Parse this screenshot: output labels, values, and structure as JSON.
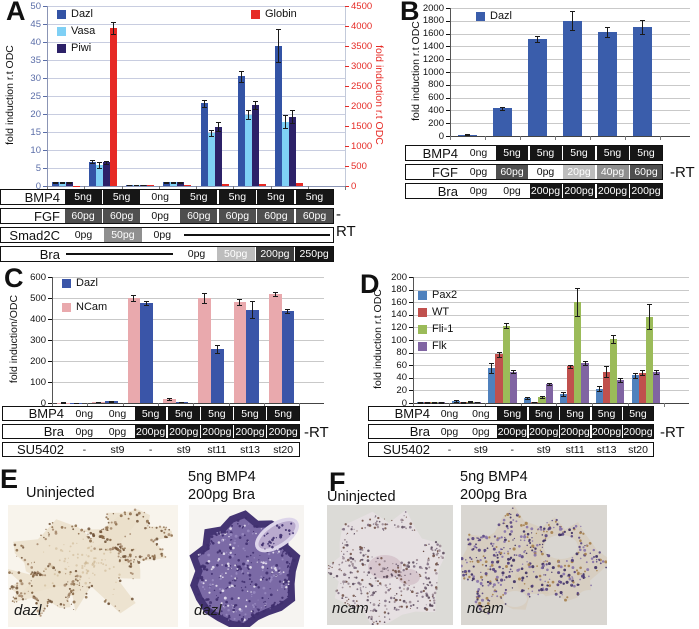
{
  "chart_data": [
    {
      "panel": "A",
      "type": "bar",
      "ylabel_left": "fold induction r.t ODC",
      "ylabel_right": "fold induction r.t ODC",
      "y_left": {
        "min": 0,
        "max": 50,
        "step": 5,
        "tick_color": "#5a6da8"
      },
      "y_right": {
        "min": 0,
        "max": 4500,
        "step": 500,
        "tick_color": "#e62a25"
      },
      "legend": [
        {
          "label": "Dazl",
          "color": "#3353a5"
        },
        {
          "label": "Vasa",
          "color": "#7fd0f5"
        },
        {
          "label": "Piwi",
          "color": "#2c2168"
        }
      ],
      "legend_right": [
        {
          "label": "Globin",
          "color": "#e62a25"
        }
      ],
      "series": [
        {
          "name": "Dazl",
          "color": "#3353a5",
          "axis": "left",
          "values": [
            1,
            6.8,
            0.3,
            1,
            23,
            30.5,
            39
          ],
          "errors": [
            0.15,
            0.5,
            0.05,
            0.12,
            1,
            1.5,
            4.5
          ]
        },
        {
          "name": "Vasa",
          "color": "#7fd0f5",
          "axis": "left",
          "values": [
            1,
            5.8,
            0.2,
            1,
            14.8,
            19.8,
            17.8
          ],
          "errors": [
            0.15,
            0.8,
            0.05,
            0.12,
            0.8,
            1.2,
            1.8
          ]
        },
        {
          "name": "Piwi",
          "color": "#2c2168",
          "axis": "left",
          "values": [
            1,
            6.6,
            0.3,
            1,
            16.5,
            22.5,
            19.3
          ],
          "errors": [
            0.15,
            0.4,
            0.05,
            0.12,
            1.3,
            1.2,
            1.7
          ]
        },
        {
          "name": "Globin",
          "color": "#e62a25",
          "axis": "right",
          "values": [
            5,
            3950,
            25,
            15,
            40,
            60,
            80
          ],
          "errors": [
            0,
            150,
            0,
            0,
            0,
            0,
            0
          ]
        }
      ],
      "table": {
        "rt": "-RT",
        "rows": [
          {
            "label": "BMP4",
            "cells": [
              {
                "t": "5ng",
                "s": "black"
              },
              {
                "t": "5ng",
                "s": "black"
              },
              {
                "t": "0ng",
                "s": "white"
              },
              {
                "t": "5ng",
                "s": "black"
              },
              {
                "t": "5ng",
                "s": "black"
              },
              {
                "t": "5ng",
                "s": "black"
              },
              {
                "t": "5ng",
                "s": "black"
              }
            ]
          },
          {
            "label": "FGF",
            "cells": [
              {
                "t": "60pg",
                "s": "dark"
              },
              {
                "t": "60pg",
                "s": "dark"
              },
              {
                "t": "0pg",
                "s": "white"
              },
              {
                "t": "60pg",
                "s": "dark"
              },
              {
                "t": "60pg",
                "s": "dark"
              },
              {
                "t": "60pg",
                "s": "dark"
              },
              {
                "t": "60pg",
                "s": "dark"
              }
            ]
          },
          {
            "label": "Smad2C",
            "cells": [
              {
                "t": "0pg",
                "s": "white"
              },
              {
                "t": "50pg",
                "s": "medium"
              },
              {
                "t": "0pg",
                "s": "white"
              },
              {
                "line": 4
              }
            ]
          },
          {
            "label": "Bra",
            "cells": [
              {
                "line": 3
              },
              {
                "t": "0pg",
                "s": "white"
              },
              {
                "t": "50pg",
                "s": "light"
              },
              {
                "t": "200pg",
                "s": "middark"
              },
              {
                "t": "250pg",
                "s": "black"
              }
            ]
          }
        ]
      }
    },
    {
      "panel": "B",
      "type": "bar",
      "ylabel_left": "fold induction r.t ODC",
      "y_left": {
        "min": 0,
        "max": 2000,
        "step": 200,
        "tick_color": "#111111"
      },
      "legend": [
        {
          "label": "Dazl",
          "color": "#3a5dab"
        }
      ],
      "series": [
        {
          "name": "Dazl",
          "color": "#3a5dab",
          "axis": "left",
          "values": [
            20,
            430,
            1520,
            1800,
            1620,
            1700
          ],
          "errors": [
            8,
            25,
            45,
            150,
            80,
            110
          ]
        }
      ],
      "table": {
        "rt": "-RT",
        "rows": [
          {
            "label": "BMP4",
            "cells": [
              {
                "t": "0ng",
                "s": "white"
              },
              {
                "t": "5ng",
                "s": "black"
              },
              {
                "t": "5ng",
                "s": "black"
              },
              {
                "t": "5ng",
                "s": "black"
              },
              {
                "t": "5ng",
                "s": "black"
              },
              {
                "t": "5ng",
                "s": "black"
              }
            ]
          },
          {
            "label": "FGF",
            "cells": [
              {
                "t": "0pg",
                "s": "white"
              },
              {
                "t": "60pg",
                "s": "dark"
              },
              {
                "t": "0pg",
                "s": "white"
              },
              {
                "t": "20pg",
                "s": "light"
              },
              {
                "t": "40pg",
                "s": "medium"
              },
              {
                "t": "60pg",
                "s": "dark"
              }
            ]
          },
          {
            "label": "Bra",
            "cells": [
              {
                "t": "0pg",
                "s": "white"
              },
              {
                "t": "0pg",
                "s": "white"
              },
              {
                "t": "200pg",
                "s": "black"
              },
              {
                "t": "200pg",
                "s": "black"
              },
              {
                "t": "200pg",
                "s": "black"
              },
              {
                "t": "200pg",
                "s": "black"
              }
            ]
          }
        ]
      }
    },
    {
      "panel": "C",
      "type": "bar",
      "ylabel_left": "fold induction/ODC",
      "y_left": {
        "min": 0,
        "max": 600,
        "step": 100,
        "tick_color": "#111111"
      },
      "legend": [
        {
          "label": "Dazl",
          "color": "#3a55a8"
        },
        {
          "label": "NCam",
          "color": "#e9a9ad"
        }
      ],
      "series": [
        {
          "name": "NCam",
          "color": "#e9a9ad",
          "axis": "left",
          "values": [
            2,
            5,
            500,
            20,
            500,
            480,
            520
          ],
          "errors": [
            1,
            2,
            15,
            5,
            25,
            15,
            10
          ]
        },
        {
          "name": "Dazl",
          "color": "#3a55a8",
          "axis": "left",
          "values": [
            1,
            8,
            475,
            5,
            258,
            445,
            438
          ],
          "errors": [
            1,
            3,
            10,
            2,
            18,
            40,
            10
          ]
        }
      ],
      "table": {
        "rt": "-RT",
        "rows": [
          {
            "label": "BMP4",
            "cells": [
              {
                "t": "0ng",
                "s": "white"
              },
              {
                "t": "0ng",
                "s": "white"
              },
              {
                "t": "5ng",
                "s": "black"
              },
              {
                "t": "5ng",
                "s": "black"
              },
              {
                "t": "5ng",
                "s": "black"
              },
              {
                "t": "5ng",
                "s": "black"
              },
              {
                "t": "5ng",
                "s": "black"
              }
            ]
          },
          {
            "label": "Bra",
            "cells": [
              {
                "t": "0pg",
                "s": "white"
              },
              {
                "t": "0pg",
                "s": "white"
              },
              {
                "t": "200pg",
                "s": "black"
              },
              {
                "t": "200pg",
                "s": "black"
              },
              {
                "t": "200pg",
                "s": "black"
              },
              {
                "t": "200pg",
                "s": "black"
              },
              {
                "t": "200pg",
                "s": "black"
              }
            ]
          },
          {
            "label": "SU5402",
            "cells": [
              {
                "t": "-",
                "s": "white"
              },
              {
                "t": "st9",
                "s": "white"
              },
              {
                "t": "-",
                "s": "white"
              },
              {
                "t": "st9",
                "s": "white"
              },
              {
                "t": "st11",
                "s": "white"
              },
              {
                "t": "st13",
                "s": "white"
              },
              {
                "t": "st20",
                "s": "white"
              }
            ]
          }
        ]
      }
    },
    {
      "panel": "D",
      "type": "bar",
      "ylabel_left": "fold induction r.t ODC",
      "y_left": {
        "min": 0,
        "max": 200,
        "step": 20,
        "tick_color": "#111111"
      },
      "legend": [
        {
          "label": "Pax2",
          "color": "#4f81bd"
        },
        {
          "label": "WT",
          "color": "#c0504d"
        },
        {
          "label": "Fli-1",
          "color": "#9bbb59"
        },
        {
          "label": "Flk",
          "color": "#8064a2"
        }
      ],
      "series": [
        {
          "name": "Pax2",
          "color": "#4f81bd",
          "axis": "left",
          "values": [
            1,
            3,
            56,
            8,
            14,
            23,
            44
          ],
          "errors": [
            0.5,
            1,
            8,
            1.5,
            3,
            4,
            4
          ]
        },
        {
          "name": "WT",
          "color": "#c0504d",
          "axis": "left",
          "values": [
            1,
            1,
            77,
            1.5,
            58,
            50,
            48
          ],
          "errors": [
            0.5,
            0.5,
            4,
            0.5,
            2,
            8,
            4
          ]
        },
        {
          "name": "Fli-1",
          "color": "#9bbb59",
          "axis": "left",
          "values": [
            1,
            2,
            123,
            9,
            160,
            102,
            137
          ],
          "errors": [
            0.5,
            0.5,
            4,
            1.5,
            22,
            6,
            20
          ]
        },
        {
          "name": "Flk",
          "color": "#8064a2",
          "axis": "left",
          "values": [
            1,
            1.5,
            50,
            30,
            64,
            37,
            49
          ],
          "errors": [
            0.5,
            0.5,
            2,
            2,
            3,
            3,
            3
          ]
        }
      ],
      "table": {
        "rt": "-RT",
        "rows": [
          {
            "label": "BMP4",
            "cells": [
              {
                "t": "0ng",
                "s": "white"
              },
              {
                "t": "0ng",
                "s": "white"
              },
              {
                "t": "5ng",
                "s": "black"
              },
              {
                "t": "5ng",
                "s": "black"
              },
              {
                "t": "5ng",
                "s": "black"
              },
              {
                "t": "5ng",
                "s": "black"
              },
              {
                "t": "5ng",
                "s": "black"
              }
            ]
          },
          {
            "label": "Bra",
            "cells": [
              {
                "t": "0pg",
                "s": "white"
              },
              {
                "t": "0pg",
                "s": "white"
              },
              {
                "t": "200pg",
                "s": "black"
              },
              {
                "t": "200pg",
                "s": "black"
              },
              {
                "t": "200pg",
                "s": "black"
              },
              {
                "t": "200pg",
                "s": "black"
              },
              {
                "t": "200pg",
                "s": "black"
              }
            ]
          },
          {
            "label": "SU5402",
            "cells": [
              {
                "t": "-",
                "s": "white"
              },
              {
                "t": "st9",
                "s": "white"
              },
              {
                "t": "-",
                "s": "white"
              },
              {
                "t": "st9",
                "s": "white"
              },
              {
                "t": "st11",
                "s": "white"
              },
              {
                "t": "st13",
                "s": "white"
              },
              {
                "t": "st20",
                "s": "white"
              }
            ]
          }
        ]
      }
    }
  ],
  "micrographs": {
    "E": {
      "letter": "E",
      "images": [
        {
          "title1": "Uninjected",
          "title2": "",
          "gene": "dazl",
          "style": "pale-branched",
          "bg": "#f8f4ec",
          "palette": {
            "tissue": "#eadfc9",
            "edge": [
              "#8a6a48",
              "#6e5136",
              "#a5876b"
            ],
            "faint": "#cdb795"
          }
        },
        {
          "title1": "5ng BMP4",
          "title2": "200pg Bra",
          "gene": "dazl",
          "style": "round-dark",
          "bg": "#f6f4f1",
          "palette": {
            "body": "#7b6aa6",
            "rim": "#443473",
            "dots": [
              "#3f2f6e",
              "#988ac0",
              "#eae4f2"
            ],
            "ovalFill": "#b9aace",
            "ovalStroke": "#ddd5ea"
          }
        }
      ]
    },
    "F": {
      "letter": "F",
      "images": [
        {
          "title1": "Uninjected",
          "title2": "",
          "gene": "ncam",
          "style": "speckle-ring",
          "bg": "#dcdbd7",
          "palette": {
            "ground": "#e8e0e4",
            "dots": [
              "#79677c",
              "#544356",
              "#97858f",
              "#6b4a3f"
            ],
            "patch": "#cdb6c1"
          }
        },
        {
          "title1": "5ng BMP4",
          "title2": "200pg Bra",
          "gene": "ncam",
          "style": "speckle-mass",
          "bg": "#d9d6d1",
          "palette": {
            "ground": "#d6c8b4",
            "dots": [
              "#55437f",
              "#3c2d63",
              "#8672aa",
              "#a6814e"
            ],
            "hole": "#d9d6d1"
          }
        }
      ]
    }
  }
}
